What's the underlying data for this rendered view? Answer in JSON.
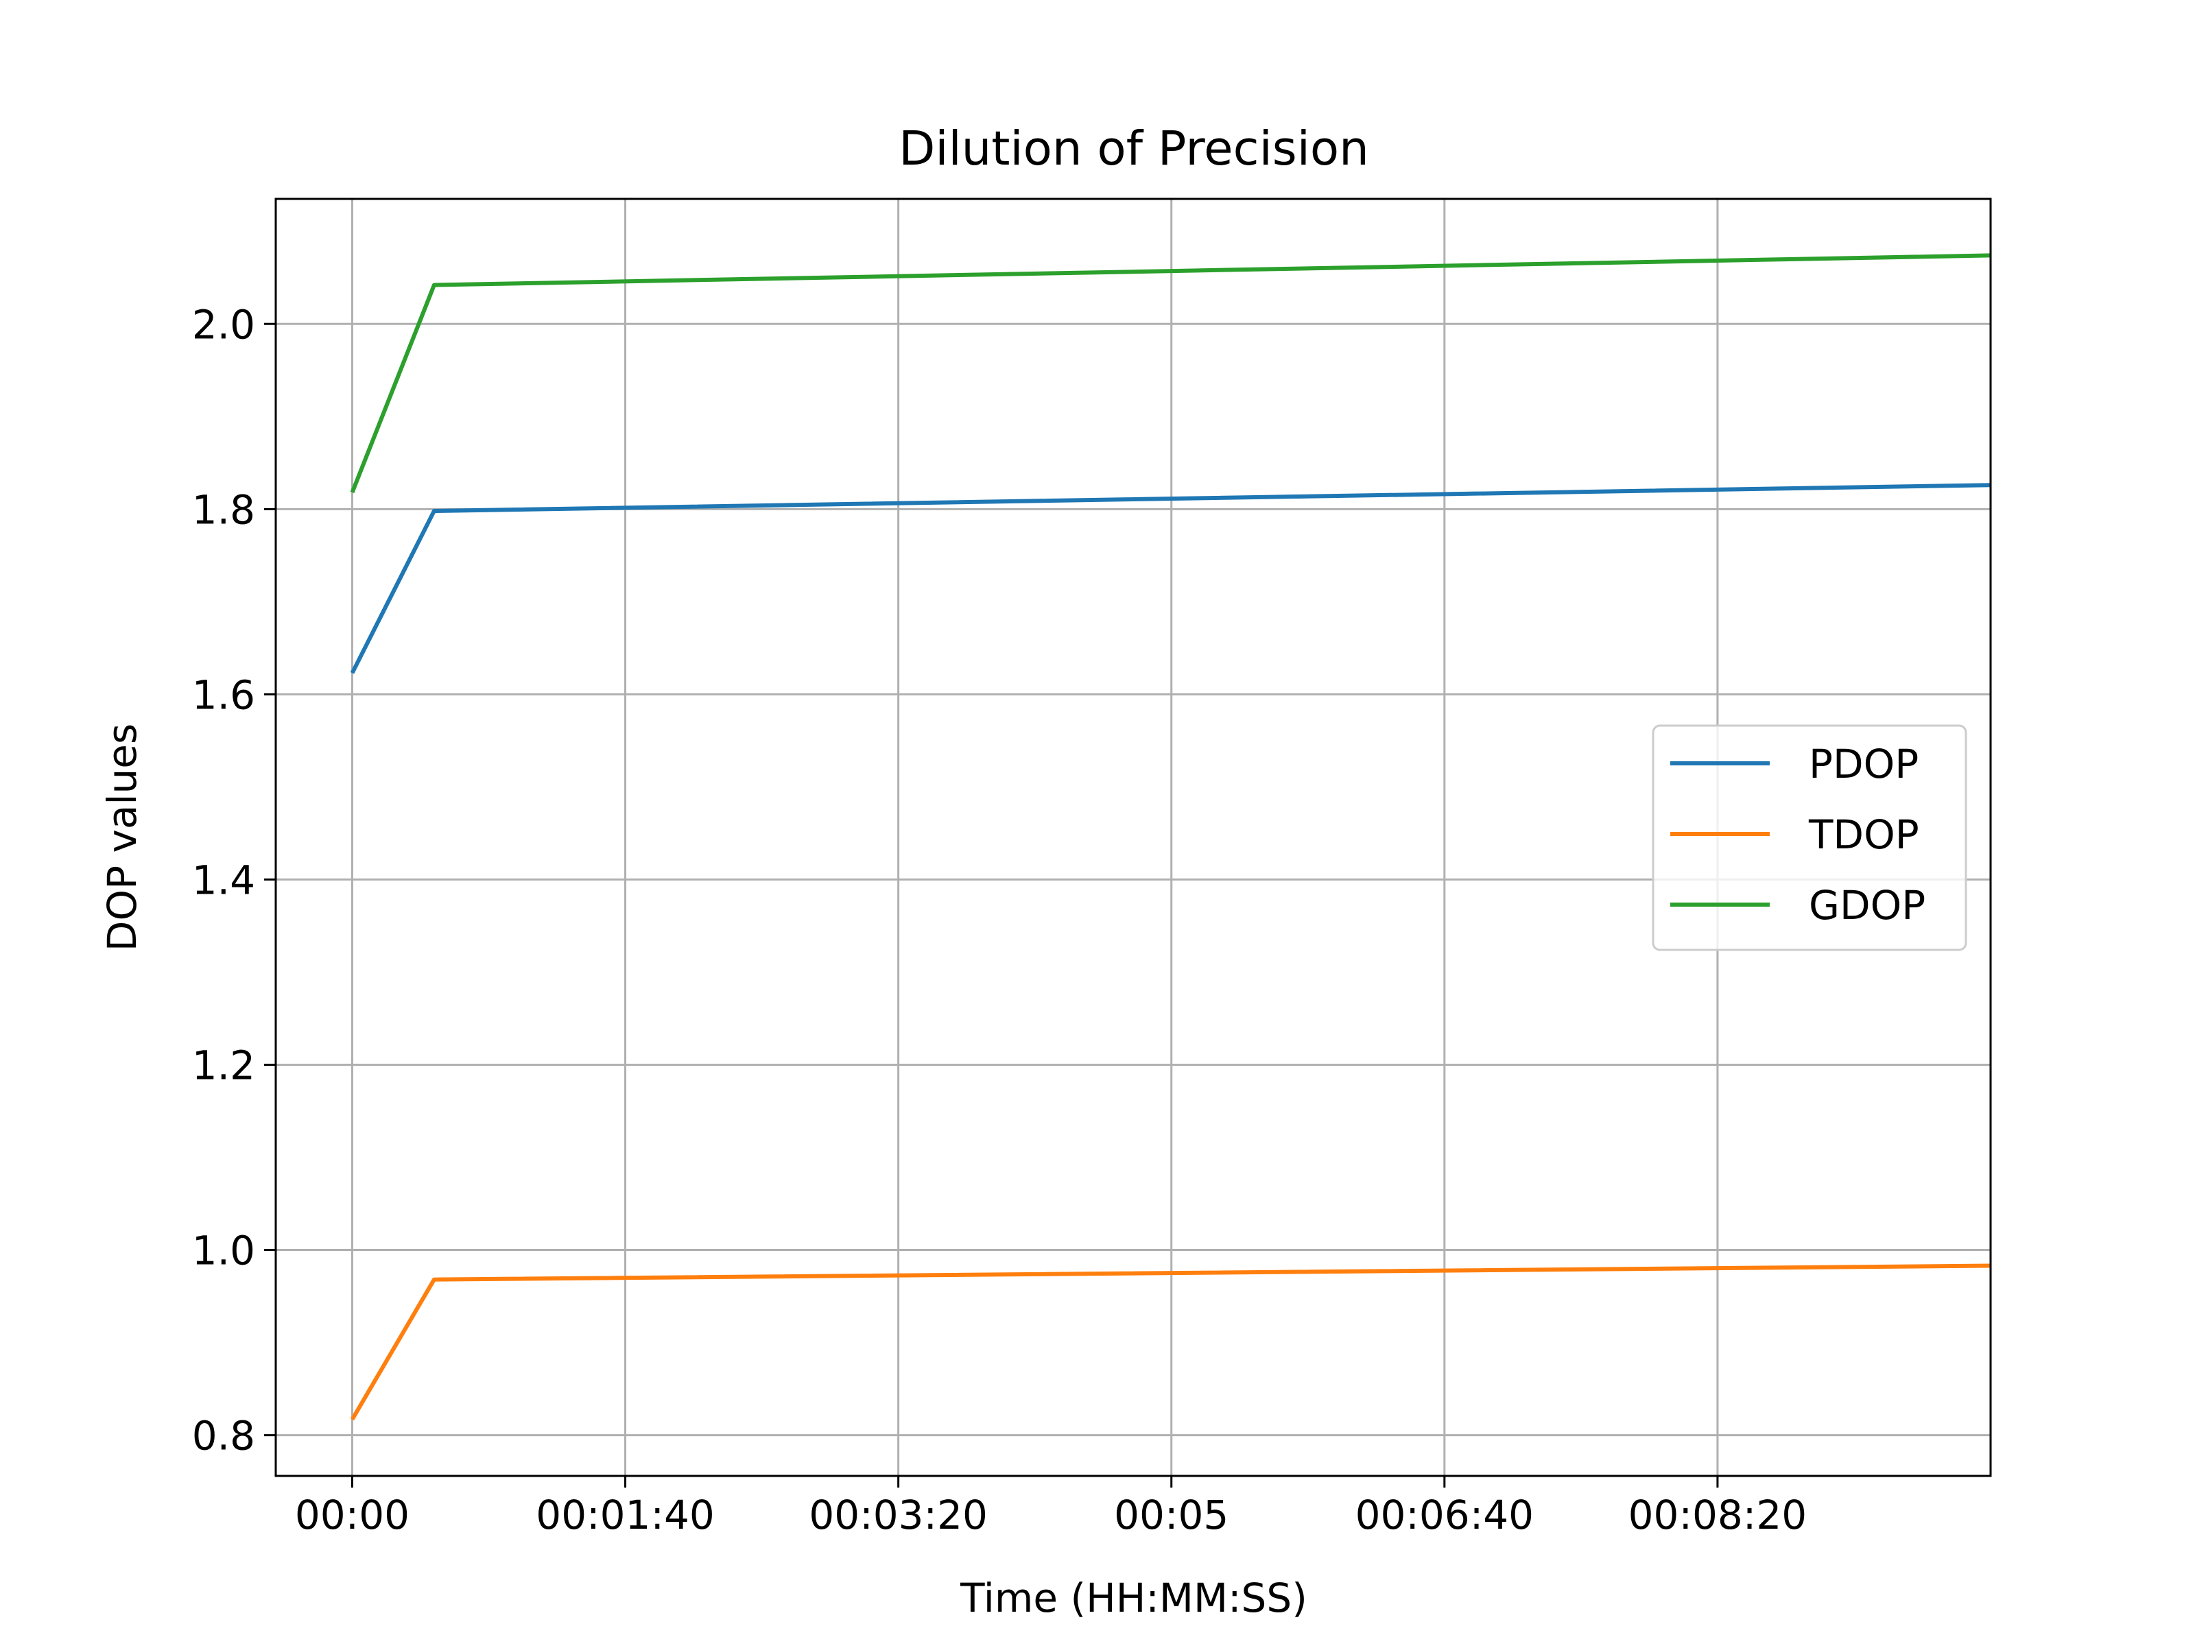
{
  "chart_data": {
    "type": "line",
    "title": "Dilution of Precision",
    "xlabel": "Time (HH:MM:SS)",
    "ylabel": "DOP values",
    "x_unit": "seconds",
    "x": [
      0,
      30,
      600
    ],
    "xlim": [
      -28,
      600
    ],
    "ylim": [
      0.756,
      2.135
    ],
    "grid": true,
    "legend_position": "center-right",
    "x_ticks": [
      {
        "value": 0,
        "label": "00:00"
      },
      {
        "value": 100,
        "label": "00:01:40"
      },
      {
        "value": 200,
        "label": "00:03:20"
      },
      {
        "value": 300,
        "label": "00:05"
      },
      {
        "value": 400,
        "label": "00:06:40"
      },
      {
        "value": 500,
        "label": "00:08:20"
      }
    ],
    "y_ticks": [
      {
        "value": 0.8,
        "label": "0.8"
      },
      {
        "value": 1.0,
        "label": "1.0"
      },
      {
        "value": 1.2,
        "label": "1.2"
      },
      {
        "value": 1.4,
        "label": "1.4"
      },
      {
        "value": 1.6,
        "label": "1.6"
      },
      {
        "value": 1.8,
        "label": "1.8"
      },
      {
        "value": 2.0,
        "label": "2.0"
      }
    ],
    "series": [
      {
        "name": "PDOP",
        "color": "#1f77b4",
        "values": [
          1.623,
          1.798,
          1.826
        ]
      },
      {
        "name": "TDOP",
        "color": "#ff7f0e",
        "values": [
          0.817,
          0.968,
          0.983
        ]
      },
      {
        "name": "GDOP",
        "color": "#2ca02c",
        "values": [
          1.818,
          2.042,
          2.074
        ]
      }
    ]
  }
}
